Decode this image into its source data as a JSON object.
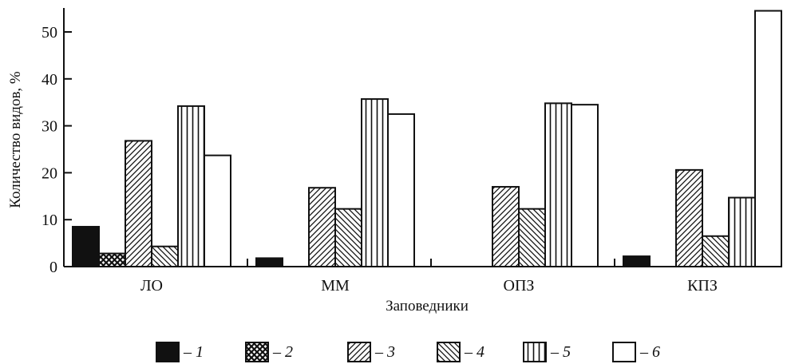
{
  "chart_data": {
    "type": "bar",
    "title": "",
    "xlabel": "Заповедники",
    "ylabel": "Количество видов, %",
    "ylim": [
      0,
      55
    ],
    "yticks": [
      0,
      10,
      20,
      30,
      40,
      50
    ],
    "grid": false,
    "legend_position": "bottom",
    "categories": [
      "ЛО",
      "ММ",
      "ОПЗ",
      "КПЗ"
    ],
    "series": [
      {
        "name": "1",
        "legend_label": "– 1",
        "pattern": "solid-black",
        "values": [
          8.5,
          1.8,
          0,
          2.2
        ]
      },
      {
        "name": "2",
        "legend_label": "– 2",
        "pattern": "crosshatch",
        "values": [
          2.8,
          0,
          0,
          0
        ]
      },
      {
        "name": "3",
        "legend_label": "– 3",
        "pattern": "diagonal-up",
        "values": [
          26.8,
          16.8,
          17.0,
          20.6
        ]
      },
      {
        "name": "4",
        "legend_label": "– 4",
        "pattern": "diagonal-down",
        "values": [
          4.3,
          12.3,
          12.3,
          6.5
        ]
      },
      {
        "name": "5",
        "legend_label": "– 5",
        "pattern": "vertical",
        "values": [
          34.2,
          35.7,
          34.8,
          14.7
        ]
      },
      {
        "name": "6",
        "legend_label": "– 6",
        "pattern": "empty",
        "values": [
          23.7,
          32.5,
          34.5,
          54.5
        ]
      }
    ]
  }
}
